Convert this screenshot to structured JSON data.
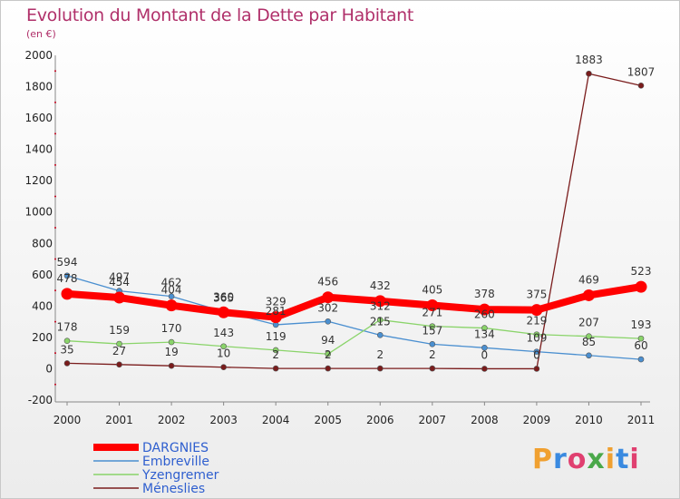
{
  "title": "Evolution du Montant de la Dette par Habitant",
  "subtitle": "(en €)",
  "logo_text": "Proxiti",
  "chart_data": {
    "type": "line",
    "categories": [
      "2000",
      "2001",
      "2002",
      "2003",
      "2004",
      "2005",
      "2006",
      "2007",
      "2008",
      "2009",
      "2010",
      "2011"
    ],
    "ylim": [
      -200,
      2000
    ],
    "yticks": [
      -200,
      0,
      200,
      400,
      600,
      800,
      1000,
      1200,
      1400,
      1600,
      1800,
      2000
    ],
    "grid": false,
    "legend_position": "bottom-left",
    "series": [
      {
        "name": "DARGNIES",
        "color": "#ff0000",
        "values": [
          478,
          454,
          404,
          360,
          329,
          456,
          432,
          405,
          378,
          375,
          469,
          523
        ]
      },
      {
        "name": "Embreville",
        "color": "#4a8fd0",
        "values": [
          594,
          497,
          462,
          365,
          281,
          302,
          215,
          157,
          134,
          109,
          85,
          60
        ]
      },
      {
        "name": "Yzengremer",
        "color": "#8ad46a",
        "values": [
          178,
          159,
          170,
          143,
          119,
          94,
          312,
          271,
          260,
          219,
          207,
          193
        ]
      },
      {
        "name": "Méneslies",
        "color": "#7a1c1c",
        "values": [
          35,
          27,
          19,
          10,
          2,
          2,
          2,
          2,
          0,
          0,
          1883,
          1807
        ]
      }
    ]
  }
}
